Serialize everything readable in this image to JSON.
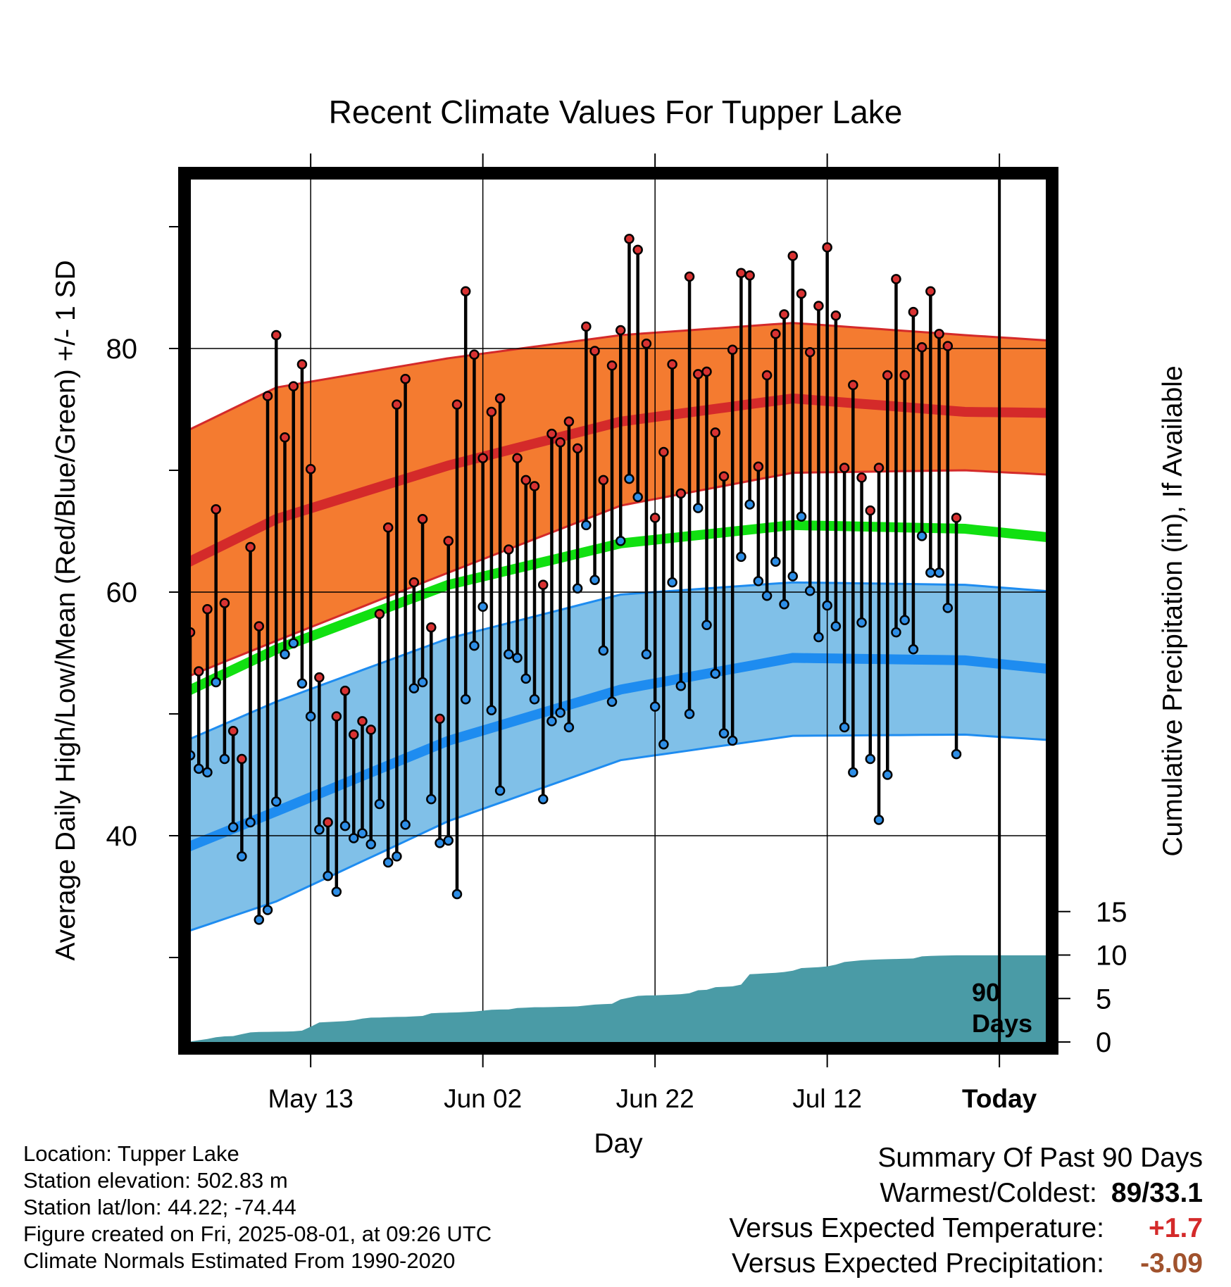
{
  "chart_data": {
    "type": "line",
    "title": "Recent Climate Values For Tupper Lake",
    "xlabel": "Day",
    "ylabel": "Average Daily High/Low/Mean (Red/Blue/Green) +/- 1 SD",
    "y2label": "Cumulative Precipitation (in), If Available",
    "x_tick_labels": [
      "May 13",
      "Jun 02",
      "Jun 22",
      "Jul 12",
      "Today"
    ],
    "y_ticks": [
      "40",
      "60",
      "80"
    ],
    "y2_ticks": [
      "0",
      "5",
      "10",
      "15"
    ],
    "ylim": [
      24,
      95
    ],
    "y2lim": [
      0,
      50
    ],
    "window_label": [
      "90",
      "Days"
    ],
    "grid": true,
    "colors": {
      "high_band": "#F47B30",
      "high_mean": "#D42A2A",
      "low_band": "#80C0E8",
      "low_mean": "#1E8CF0",
      "mean": "#11E011",
      "precip": "#4A9BA6",
      "high_marker": "#D83232",
      "low_marker": "#2E8EE6"
    },
    "normals": {
      "high_mean": [
        [
          -11,
          58.7
        ],
        [
          10,
          66.0
        ],
        [
          30,
          70.4
        ],
        [
          50,
          74.0
        ],
        [
          70,
          75.9
        ],
        [
          90,
          74.8
        ],
        [
          101,
          74.7
        ]
      ],
      "high_upper": [
        [
          -11,
          69.6
        ],
        [
          10,
          76.8
        ],
        [
          30,
          79.2
        ],
        [
          50,
          81.1
        ],
        [
          70,
          82.1
        ],
        [
          90,
          81.1
        ],
        [
          101,
          80.6
        ]
      ],
      "high_lower": [
        [
          -11,
          50.0
        ],
        [
          10,
          56.0
        ],
        [
          30,
          61.6
        ],
        [
          50,
          67.1
        ],
        [
          70,
          69.8
        ],
        [
          90,
          70.0
        ],
        [
          101,
          69.6
        ]
      ],
      "low_mean": [
        [
          -11,
          36.0
        ],
        [
          10,
          42.0
        ],
        [
          30,
          47.8
        ],
        [
          50,
          52.0
        ],
        [
          70,
          54.6
        ],
        [
          90,
          54.4
        ],
        [
          101,
          53.6
        ]
      ],
      "low_upper": [
        [
          -11,
          44.6
        ],
        [
          10,
          51.0
        ],
        [
          30,
          56.2
        ],
        [
          50,
          59.8
        ],
        [
          70,
          60.8
        ],
        [
          90,
          60.6
        ],
        [
          101,
          60.0
        ]
      ],
      "low_lower": [
        [
          -11,
          29.6
        ],
        [
          10,
          34.6
        ],
        [
          30,
          41.2
        ],
        [
          50,
          46.2
        ],
        [
          70,
          48.2
        ],
        [
          90,
          48.3
        ],
        [
          101,
          47.8
        ]
      ],
      "mean": [
        [
          -11,
          48.3
        ],
        [
          10,
          55.3
        ],
        [
          30,
          60.6
        ],
        [
          50,
          64.0
        ],
        [
          70,
          65.5
        ],
        [
          90,
          65.2
        ],
        [
          101,
          64.4
        ]
      ]
    },
    "daily": [
      {
        "x": 0,
        "high": 56.7,
        "low": 46.6
      },
      {
        "x": 1,
        "high": 53.5,
        "low": 45.5
      },
      {
        "x": 2,
        "high": 58.6,
        "low": 45.2
      },
      {
        "x": 3,
        "high": 66.8,
        "low": 52.6
      },
      {
        "x": 4,
        "high": 59.1,
        "low": 46.3
      },
      {
        "x": 5,
        "high": 48.6,
        "low": 40.7
      },
      {
        "x": 6,
        "high": 46.3,
        "low": 38.3
      },
      {
        "x": 7,
        "high": 63.7,
        "low": 41.1
      },
      {
        "x": 8,
        "high": 57.2,
        "low": 33.1
      },
      {
        "x": 9,
        "high": 76.1,
        "low": 33.9
      },
      {
        "x": 10,
        "high": 81.1,
        "low": 42.8
      },
      {
        "x": 11,
        "high": 72.7,
        "low": 54.9
      },
      {
        "x": 12,
        "high": 76.9,
        "low": 55.8
      },
      {
        "x": 13,
        "high": 78.7,
        "low": 52.5
      },
      {
        "x": 14,
        "high": 70.1,
        "low": 49.8
      },
      {
        "x": 15,
        "high": 53.0,
        "low": 40.5
      },
      {
        "x": 16,
        "high": 41.1,
        "low": 36.7
      },
      {
        "x": 17,
        "high": 49.8,
        "low": 35.4
      },
      {
        "x": 18,
        "high": 51.9,
        "low": 40.8
      },
      {
        "x": 19,
        "high": 48.3,
        "low": 39.8
      },
      {
        "x": 20,
        "high": 49.4,
        "low": 40.2
      },
      {
        "x": 21,
        "high": 48.7,
        "low": 39.3
      },
      {
        "x": 22,
        "high": 58.2,
        "low": 42.6
      },
      {
        "x": 23,
        "high": 65.3,
        "low": 37.8
      },
      {
        "x": 24,
        "high": 75.4,
        "low": 38.3
      },
      {
        "x": 25,
        "high": 77.5,
        "low": 40.9
      },
      {
        "x": 26,
        "high": 60.8,
        "low": 52.1
      },
      {
        "x": 27,
        "high": 66.0,
        "low": 52.6
      },
      {
        "x": 28,
        "high": 57.1,
        "low": 43.0
      },
      {
        "x": 29,
        "high": 49.6,
        "low": 39.4
      },
      {
        "x": 30,
        "high": 64.2,
        "low": 39.6
      },
      {
        "x": 31,
        "high": 75.4,
        "low": 35.2
      },
      {
        "x": 32,
        "high": 84.7,
        "low": 51.2
      },
      {
        "x": 33,
        "high": 79.5,
        "low": 55.6
      },
      {
        "x": 34,
        "high": 71.0,
        "low": 58.8
      },
      {
        "x": 35,
        "high": 74.8,
        "low": 50.3
      },
      {
        "x": 36,
        "high": 75.9,
        "low": 43.7
      },
      {
        "x": 37,
        "high": 63.5,
        "low": 54.9
      },
      {
        "x": 38,
        "high": 71.0,
        "low": 54.6
      },
      {
        "x": 39,
        "high": 69.2,
        "low": 52.9
      },
      {
        "x": 40,
        "high": 68.7,
        "low": 51.2
      },
      {
        "x": 41,
        "high": 60.6,
        "low": 43.0
      },
      {
        "x": 42,
        "high": 73.0,
        "low": 49.4
      },
      {
        "x": 43,
        "high": 72.3,
        "low": 50.1
      },
      {
        "x": 44,
        "high": 74.0,
        "low": 48.9
      },
      {
        "x": 45,
        "high": 71.8,
        "low": 60.3
      },
      {
        "x": 46,
        "high": 81.8,
        "low": 65.5
      },
      {
        "x": 47,
        "high": 79.8,
        "low": 61.0
      },
      {
        "x": 48,
        "high": 69.2,
        "low": 55.2
      },
      {
        "x": 49,
        "high": 78.6,
        "low": 51.0
      },
      {
        "x": 50,
        "high": 81.5,
        "low": 64.2
      },
      {
        "x": 51,
        "high": 89.0,
        "low": 69.3
      },
      {
        "x": 52,
        "high": 88.1,
        "low": 67.8
      },
      {
        "x": 53,
        "high": 80.4,
        "low": 54.9
      },
      {
        "x": 54,
        "high": 66.1,
        "low": 50.6
      },
      {
        "x": 55,
        "high": 71.5,
        "low": 47.5
      },
      {
        "x": 56,
        "high": 78.7,
        "low": 60.8
      },
      {
        "x": 57,
        "high": 68.1,
        "low": 52.3
      },
      {
        "x": 58,
        "high": 85.9,
        "low": 50.0
      },
      {
        "x": 59,
        "high": 77.9,
        "low": 66.9
      },
      {
        "x": 60,
        "high": 78.1,
        "low": 57.3
      },
      {
        "x": 61,
        "high": 73.1,
        "low": 53.3
      },
      {
        "x": 62,
        "high": 69.5,
        "low": 48.4
      },
      {
        "x": 63,
        "high": 79.9,
        "low": 47.8
      },
      {
        "x": 64,
        "high": 86.2,
        "low": 62.9
      },
      {
        "x": 65,
        "high": 86.0,
        "low": 67.2
      },
      {
        "x": 66,
        "high": 70.3,
        "low": 60.9
      },
      {
        "x": 67,
        "high": 77.8,
        "low": 59.7
      },
      {
        "x": 68,
        "high": 81.2,
        "low": 62.5
      },
      {
        "x": 69,
        "high": 82.8,
        "low": 59.0
      },
      {
        "x": 70,
        "high": 87.6,
        "low": 61.3
      },
      {
        "x": 71,
        "high": 84.5,
        "low": 66.2
      },
      {
        "x": 72,
        "high": 79.7,
        "low": 60.1
      },
      {
        "x": 73,
        "high": 83.5,
        "low": 56.3
      },
      {
        "x": 74,
        "high": 88.3,
        "low": 58.9
      },
      {
        "x": 75,
        "high": 82.7,
        "low": 57.2
      },
      {
        "x": 76,
        "high": 70.2,
        "low": 48.9
      },
      {
        "x": 77,
        "high": 77.0,
        "low": 45.2
      },
      {
        "x": 78,
        "high": 69.4,
        "low": 57.5
      },
      {
        "x": 79,
        "high": 66.7,
        "low": 46.3
      },
      {
        "x": 80,
        "high": 70.2,
        "low": 41.3
      },
      {
        "x": 81,
        "high": 77.8,
        "low": 45.0
      },
      {
        "x": 82,
        "high": 85.7,
        "low": 56.7
      },
      {
        "x": 83,
        "high": 77.8,
        "low": 57.7
      },
      {
        "x": 84,
        "high": 83.0,
        "low": 55.3
      },
      {
        "x": 85,
        "high": 80.1,
        "low": 64.6
      },
      {
        "x": 86,
        "high": 84.7,
        "low": 61.6
      },
      {
        "x": 87,
        "high": 81.2,
        "low": 61.6
      },
      {
        "x": 88,
        "high": 80.2,
        "low": 58.7
      },
      {
        "x": 89,
        "high": 66.1,
        "low": 46.7
      }
    ],
    "precip_cumulative": [
      [
        0,
        0.05
      ],
      [
        1,
        0.2
      ],
      [
        2,
        0.35
      ],
      [
        3,
        0.55
      ],
      [
        4,
        0.65
      ],
      [
        5,
        0.68
      ],
      [
        6,
        0.9
      ],
      [
        7,
        1.1
      ],
      [
        8,
        1.15
      ],
      [
        9,
        1.17
      ],
      [
        10,
        1.18
      ],
      [
        11,
        1.2
      ],
      [
        12,
        1.22
      ],
      [
        13,
        1.3
      ],
      [
        14,
        1.75
      ],
      [
        15,
        2.25
      ],
      [
        16,
        2.3
      ],
      [
        17,
        2.35
      ],
      [
        18,
        2.4
      ],
      [
        19,
        2.5
      ],
      [
        20,
        2.7
      ],
      [
        21,
        2.8
      ],
      [
        22,
        2.82
      ],
      [
        23,
        2.85
      ],
      [
        24,
        2.88
      ],
      [
        25,
        2.9
      ],
      [
        26,
        2.95
      ],
      [
        27,
        3.0
      ],
      [
        28,
        3.3
      ],
      [
        29,
        3.35
      ],
      [
        30,
        3.38
      ],
      [
        31,
        3.4
      ],
      [
        32,
        3.45
      ],
      [
        33,
        3.5
      ],
      [
        34,
        3.6
      ],
      [
        35,
        3.7
      ],
      [
        36,
        3.73
      ],
      [
        37,
        3.75
      ],
      [
        38,
        3.9
      ],
      [
        39,
        3.95
      ],
      [
        40,
        4.0
      ],
      [
        41,
        4.0
      ],
      [
        42,
        4.02
      ],
      [
        43,
        4.05
      ],
      [
        44,
        4.07
      ],
      [
        45,
        4.1
      ],
      [
        46,
        4.2
      ],
      [
        47,
        4.3
      ],
      [
        48,
        4.35
      ],
      [
        49,
        4.4
      ],
      [
        50,
        4.9
      ],
      [
        51,
        5.1
      ],
      [
        52,
        5.3
      ],
      [
        53,
        5.35
      ],
      [
        54,
        5.37
      ],
      [
        55,
        5.4
      ],
      [
        56,
        5.45
      ],
      [
        57,
        5.5
      ],
      [
        58,
        5.6
      ],
      [
        59,
        5.95
      ],
      [
        60,
        6.0
      ],
      [
        61,
        6.3
      ],
      [
        62,
        6.35
      ],
      [
        63,
        6.4
      ],
      [
        64,
        6.6
      ],
      [
        65,
        7.8
      ],
      [
        66,
        7.85
      ],
      [
        67,
        7.9
      ],
      [
        68,
        7.95
      ],
      [
        69,
        8.05
      ],
      [
        70,
        8.2
      ],
      [
        71,
        8.5
      ],
      [
        72,
        8.55
      ],
      [
        73,
        8.6
      ],
      [
        74,
        8.7
      ],
      [
        75,
        8.9
      ],
      [
        76,
        9.2
      ],
      [
        77,
        9.3
      ],
      [
        78,
        9.4
      ],
      [
        79,
        9.45
      ],
      [
        80,
        9.5
      ],
      [
        81,
        9.52
      ],
      [
        82,
        9.55
      ],
      [
        83,
        9.57
      ],
      [
        84,
        9.6
      ],
      [
        85,
        9.85
      ],
      [
        86,
        9.9
      ],
      [
        87,
        9.93
      ],
      [
        88,
        9.95
      ],
      [
        89,
        9.97
      ],
      [
        101,
        9.97
      ]
    ]
  },
  "info": {
    "location": "Location: Tupper Lake",
    "elevation": "Station elevation: 502.83 m",
    "latlon": "Station lat/lon: 44.22; -74.44",
    "created": "Figure created on Fri, 2025-08-01, at 09:26 UTC",
    "normals": "Climate Normals Estimated From 1990-2020"
  },
  "summary": {
    "heading": "Summary Of Past 90 Days",
    "warmest_label": "Warmest/Coldest:",
    "warmest_value": "89/33.1",
    "temp_label": "Versus Expected Temperature:",
    "temp_value": "+1.7",
    "temp_color": "#D42A2A",
    "precip_label": "Versus Expected Precipitation:",
    "precip_value": "-3.09",
    "precip_color": "#A0522D"
  }
}
